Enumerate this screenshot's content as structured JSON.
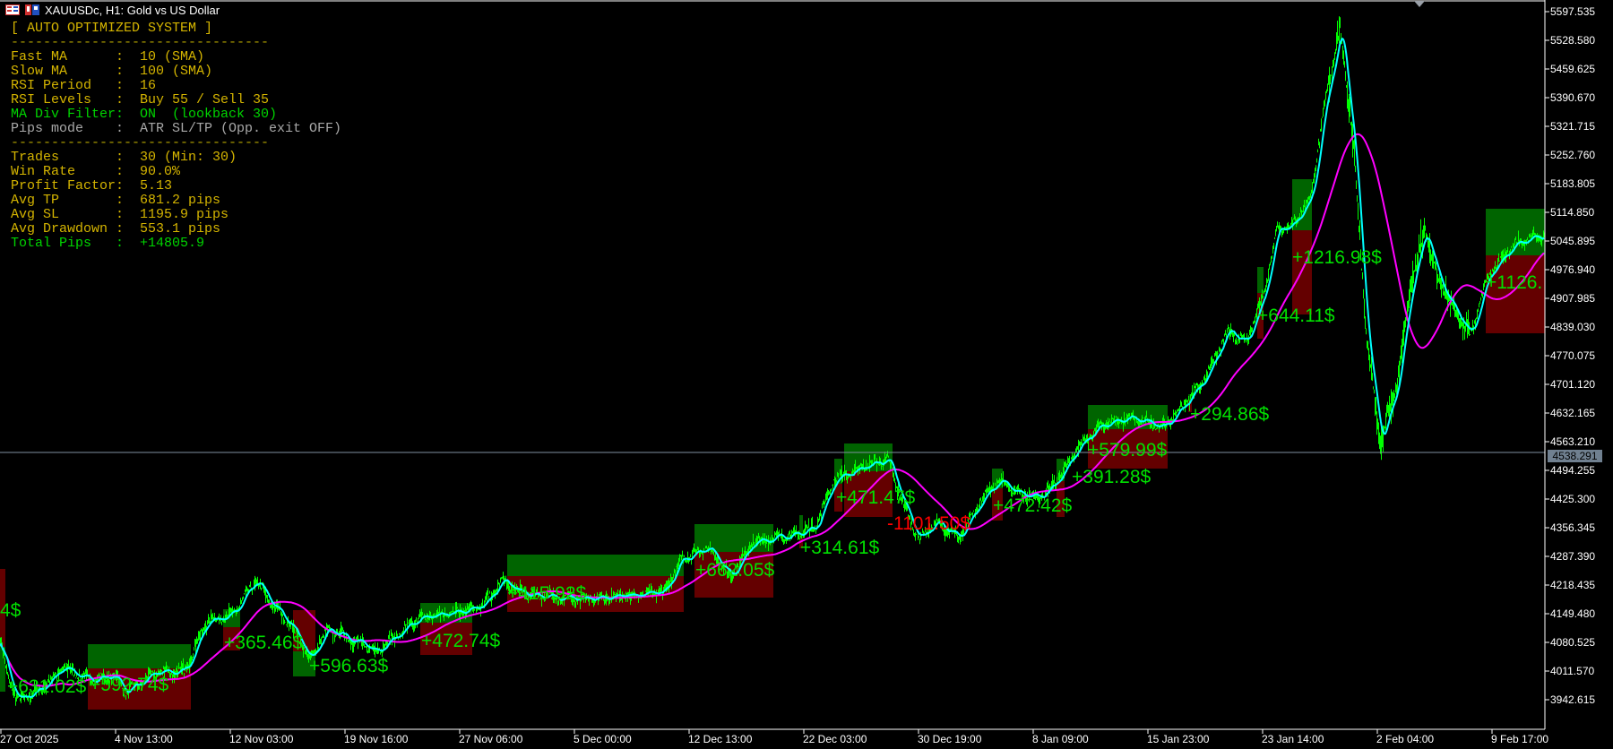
{
  "window": {
    "title": "XAUUSDc, H1:  Gold vs US Dollar",
    "icons": [
      "chart-grid-icon",
      "symbol-icon"
    ]
  },
  "panel": {
    "lines": [
      {
        "text": "[ AUTO OPTIMIZED SYSTEM ]",
        "color": "#d4b400"
      },
      {
        "text": "--------------------------------",
        "color": "#b0a000"
      },
      {
        "text": "Fast MA      :  10 (SMA)",
        "color": "#d4b400"
      },
      {
        "text": "Slow MA      :  100 (SMA)",
        "color": "#d4b400"
      },
      {
        "text": "RSI Period   :  16",
        "color": "#d4b400"
      },
      {
        "text": "RSI Levels   :  Buy 55 / Sell 35",
        "color": "#d4b400"
      },
      {
        "text": "MA Div Filter:  ON  (lookback 30)",
        "color": "#00d400"
      },
      {
        "text": "Pips mode    :  ATR SL/TP (Opp. exit OFF)",
        "color": "#a8a8a8"
      },
      {
        "text": "--------------------------------",
        "color": "#b0a000"
      },
      {
        "text": "Trades       :  30 (Min: 30)",
        "color": "#d4b400"
      },
      {
        "text": "Win Rate     :  90.0%",
        "color": "#d4b400"
      },
      {
        "text": "Profit Factor:  5.13",
        "color": "#d4b400"
      },
      {
        "text": "Avg TP       :  681.2 pips",
        "color": "#d4b400"
      },
      {
        "text": "Avg SL       :  1195.9 pips",
        "color": "#d4b400"
      },
      {
        "text": "Avg Drawdown :  553.1 pips",
        "color": "#d4b400"
      },
      {
        "text": "Total Pips   :  +14805.9",
        "color": "#00d400"
      }
    ]
  },
  "price_axis": {
    "ticks": [
      "5597.535",
      "5528.580",
      "5459.625",
      "5390.670",
      "5321.715",
      "5252.760",
      "5183.805",
      "5114.850",
      "5045.895",
      "4976.940",
      "4907.985",
      "4839.030",
      "4770.075",
      "4701.120",
      "4632.165",
      "4563.210",
      "4494.255",
      "4425.300",
      "4356.345",
      "4287.390",
      "4218.435",
      "4149.480",
      "4080.525",
      "4011.570",
      "3942.615"
    ],
    "current_price": "4538.291"
  },
  "time_axis": {
    "ticks": [
      "27 Oct 2025",
      "4 Nov 13:00",
      "12 Nov 03:00",
      "19 Nov 16:00",
      "27 Nov 06:00",
      "5 Dec 00:00",
      "12 Dec 13:00",
      "22 Dec 03:00",
      "30 Dec 19:00",
      "8 Jan 09:00",
      "15 Jan 23:00",
      "23 Jan 14:00",
      "2 Feb 04:00",
      "9 Feb 17:00"
    ]
  },
  "trades": [
    {
      "label": "4$",
      "result": "win"
    },
    {
      "label": "+631.02$",
      "result": "win"
    },
    {
      "label": "+592.74$",
      "result": "win"
    },
    {
      "label": "+365.46$",
      "result": "win"
    },
    {
      "label": "+596.63$",
      "result": "win"
    },
    {
      "label": "+472.74$",
      "result": "win"
    },
    {
      "label": "+415.92$",
      "result": "win"
    },
    {
      "label": "+662.05$",
      "result": "win"
    },
    {
      "label": "+314.61$",
      "result": "win"
    },
    {
      "label": "+471.47$",
      "result": "win"
    },
    {
      "label": "-1101.50$",
      "result": "loss"
    },
    {
      "label": "+472.42$",
      "result": "win"
    },
    {
      "label": "+391.28$",
      "result": "win"
    },
    {
      "label": "+579.99$",
      "result": "win"
    },
    {
      "label": "+294.86$",
      "result": "win"
    },
    {
      "label": "+644.11$",
      "result": "win"
    },
    {
      "label": "+1216.98$",
      "result": "win"
    },
    {
      "label": "+1126.",
      "result": "win"
    }
  ],
  "colors": {
    "background": "#000000",
    "bars": "#00ff00",
    "fast_ma": "#00ffff",
    "slow_ma": "#ff00ff",
    "tp_zone": "#006400",
    "sl_zone": "#640000",
    "win_label": "#00e000",
    "loss_label": "#ff0000",
    "crosshair": "#8090a0"
  }
}
